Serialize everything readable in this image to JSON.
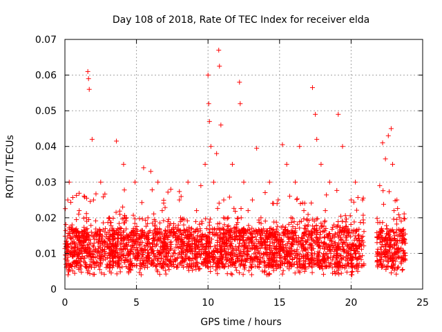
{
  "chart_data": {
    "type": "scatter",
    "title": "Day 108 of 2018, Rate Of TEC Index for receiver elda",
    "xlabel": "GPS time / hours",
    "ylabel": "ROTI / TECUs",
    "xlim": [
      0,
      25
    ],
    "ylim": [
      0,
      0.07
    ],
    "x_ticks": [
      0,
      5,
      10,
      15,
      20,
      25
    ],
    "x_tick_labels": [
      "0",
      "5",
      "10",
      "15",
      "20",
      "25"
    ],
    "y_ticks": [
      0,
      0.01,
      0.02,
      0.03,
      0.04,
      0.05,
      0.06,
      0.07
    ],
    "y_tick_labels": [
      "0",
      "0.01",
      "0.02",
      "0.03",
      "0.04",
      "0.05",
      "0.06",
      "0.07"
    ],
    "grid": true,
    "marker": "+",
    "color": "#ff0000",
    "series": [
      {
        "name": "ROTI",
        "x": [
          0.1,
          0.2,
          0.3,
          0.5,
          0.8,
          1.0,
          1.2,
          1.5,
          1.6,
          1.65,
          1.7,
          1.9,
          2.0,
          2.2,
          2.5,
          2.8,
          3.1,
          3.3,
          3.6,
          3.9,
          4.1,
          4.3,
          4.6,
          4.9,
          5.2,
          5.5,
          5.8,
          6.0,
          6.3,
          6.5,
          6.8,
          7.1,
          7.4,
          7.7,
          8.0,
          8.3,
          8.6,
          8.9,
          9.2,
          9.5,
          9.8,
          10.0,
          10.05,
          10.1,
          10.2,
          10.4,
          10.6,
          10.75,
          10.8,
          10.9,
          11.1,
          11.4,
          11.7,
          12.0,
          12.2,
          12.25,
          12.5,
          12.8,
          13.1,
          13.4,
          13.7,
          14.0,
          14.3,
          14.6,
          14.9,
          15.2,
          15.5,
          15.8,
          16.1,
          16.4,
          16.7,
          17.0,
          17.3,
          17.5,
          17.6,
          17.9,
          18.2,
          18.5,
          18.8,
          19.1,
          19.4,
          19.7,
          20.0,
          20.3,
          20.6,
          20.8,
          22.0,
          22.2,
          22.4,
          22.6,
          22.8,
          22.9,
          23.0,
          23.2,
          23.4,
          23.6,
          23.7
        ],
        "y": [
          0.012,
          0.025,
          0.03,
          0.018,
          0.015,
          0.022,
          0.01,
          0.02,
          0.061,
          0.059,
          0.056,
          0.042,
          0.025,
          0.015,
          0.03,
          0.012,
          0.02,
          0.01,
          0.0415,
          0.015,
          0.035,
          0.02,
          0.012,
          0.03,
          0.015,
          0.034,
          0.02,
          0.033,
          0.012,
          0.03,
          0.022,
          0.015,
          0.028,
          0.01,
          0.025,
          0.018,
          0.03,
          0.012,
          0.022,
          0.029,
          0.035,
          0.06,
          0.052,
          0.047,
          0.04,
          0.03,
          0.038,
          0.067,
          0.0625,
          0.046,
          0.025,
          0.02,
          0.035,
          0.015,
          0.058,
          0.052,
          0.03,
          0.022,
          0.025,
          0.0395,
          0.02,
          0.015,
          0.03,
          0.012,
          0.025,
          0.0405,
          0.035,
          0.02,
          0.03,
          0.04,
          0.022,
          0.018,
          0.0565,
          0.049,
          0.042,
          0.035,
          0.022,
          0.03,
          0.018,
          0.049,
          0.04,
          0.015,
          0.025,
          0.03,
          0.012,
          0.025,
          0.029,
          0.041,
          0.0365,
          0.043,
          0.045,
          0.035,
          0.022,
          0.025,
          0.02,
          0.015,
          0.01
        ]
      }
    ],
    "dense_band": {
      "description_values_in_data_units": true,
      "segments": [
        [
          0,
          20.9
        ],
        [
          21.8,
          23.8
        ]
      ],
      "low": 0.004,
      "high": 0.02
    }
  }
}
